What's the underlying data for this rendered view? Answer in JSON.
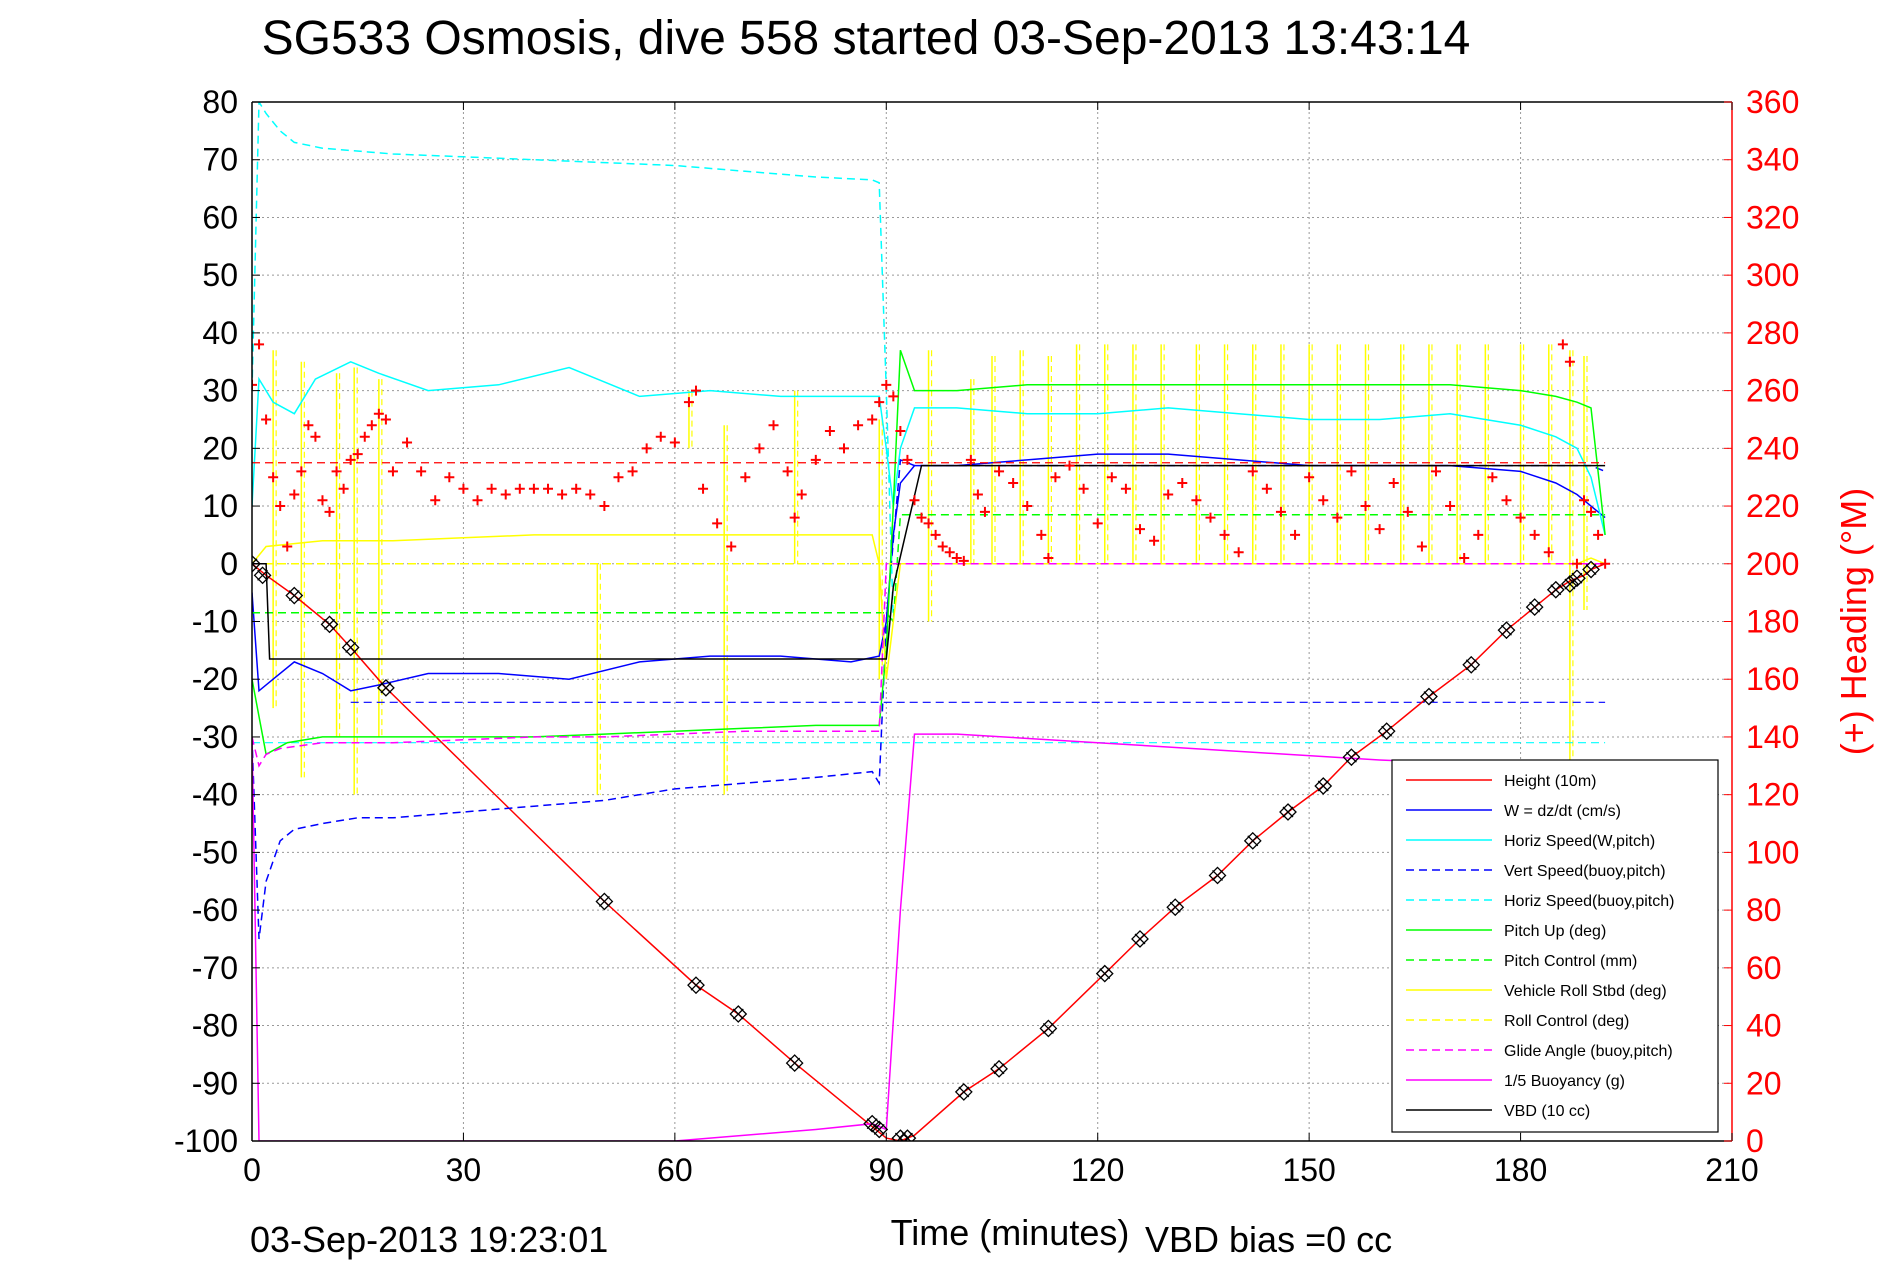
{
  "chart_data": {
    "type": "line",
    "title": "SG533 Osmosis, dive 558 started 03-Sep-2013 13:43:14",
    "xlabel": "Time (minutes)",
    "ylabel": "",
    "y2label": "(+) Heading (°M)",
    "xlim": [
      0,
      210
    ],
    "ylim": [
      -100,
      80
    ],
    "y2lim": [
      0,
      360
    ],
    "xticks": [
      0,
      30,
      60,
      90,
      120,
      150,
      180,
      210
    ],
    "yticks": [
      80,
      70,
      60,
      50,
      40,
      30,
      20,
      10,
      0,
      -10,
      -20,
      -30,
      -40,
      -50,
      -60,
      -70,
      -80,
      -90,
      -100
    ],
    "y2ticks": [
      360,
      340,
      320,
      300,
      280,
      260,
      240,
      220,
      200,
      180,
      160,
      140,
      120,
      100,
      80,
      60,
      40,
      20,
      0
    ],
    "grid": true,
    "legend_position": "bottom-right",
    "footer_left": "03-Sep-2013 19:23:01",
    "footer_right": "VBD bias =0 cc",
    "colors": {
      "axis": "#000000",
      "right_axis": "#ff0000",
      "grid": "#999999"
    },
    "series": [
      {
        "name": "Height (10m)",
        "color": "#ff0000",
        "style": "solid",
        "x": [
          0,
          2,
          6,
          11,
          14,
          19,
          50,
          63,
          69,
          77,
          88,
          90,
          92,
          94,
          101,
          106,
          113,
          121,
          126,
          131,
          137,
          142,
          147,
          152,
          156,
          161,
          167,
          173,
          178,
          182,
          185,
          187,
          189,
          190,
          192
        ],
        "values": [
          0,
          -2,
          -5.5,
          -10.5,
          -14.5,
          -21.5,
          -58.5,
          -73,
          -78,
          -86.5,
          -97.5,
          -99.5,
          -100,
          -99,
          -91.5,
          -87.5,
          -80.5,
          -71,
          -65,
          -59.5,
          -54,
          -48,
          -43,
          -38.5,
          -33.5,
          -29,
          -23,
          -17.5,
          -11.5,
          -7.5,
          -4.5,
          -3,
          -2,
          -1,
          0
        ]
      },
      {
        "name": "W = dz/dt (cm/s)",
        "color": "#0000ff",
        "style": "solid",
        "x": [
          0,
          1,
          3,
          6,
          10,
          14,
          18,
          25,
          35,
          45,
          55,
          65,
          75,
          85,
          89,
          90,
          91,
          92,
          94,
          100,
          110,
          120,
          130,
          140,
          150,
          160,
          170,
          180,
          185,
          188,
          190,
          192
        ],
        "values": [
          -5,
          -22,
          -20,
          -17,
          -19,
          -22,
          -21,
          -19,
          -19,
          -20,
          -17,
          -16,
          -16,
          -17,
          -16,
          -10,
          5,
          14,
          17,
          17,
          18,
          19,
          19,
          18,
          17,
          17,
          17,
          16,
          14,
          12,
          10,
          8
        ]
      },
      {
        "name": "Horiz Speed(W,pitch)",
        "color": "#00ffff",
        "style": "solid",
        "x": [
          0,
          1,
          3,
          6,
          9,
          14,
          18,
          25,
          35,
          45,
          55,
          65,
          75,
          85,
          89,
          90,
          91,
          92,
          94,
          100,
          110,
          120,
          130,
          140,
          150,
          160,
          170,
          180,
          185,
          188,
          190,
          192
        ],
        "values": [
          10,
          32,
          28,
          26,
          32,
          35,
          33,
          30,
          31,
          34,
          29,
          30,
          29,
          29,
          29,
          20,
          10,
          20,
          27,
          27,
          26,
          26,
          27,
          26,
          25,
          25,
          26,
          24,
          22,
          20,
          15,
          5
        ]
      },
      {
        "name": "Vert Speed(buoy,pitch)",
        "color": "#0000ff",
        "style": "dashed",
        "x": [
          0,
          1,
          2,
          4,
          6,
          10,
          15,
          20,
          30,
          40,
          50,
          60,
          70,
          80,
          88,
          89,
          90,
          92,
          94,
          100,
          120,
          140,
          160,
          180,
          190,
          192
        ],
        "values": [
          -30,
          -65,
          -55,
          -48,
          -46,
          -45,
          -44,
          -44,
          -43,
          -42,
          -41,
          -39,
          -38,
          -37,
          -36,
          -38,
          -10,
          18,
          17,
          17,
          17,
          17,
          17,
          17,
          17,
          16
        ]
      },
      {
        "name": "Horiz Speed(buoy,pitch)",
        "color": "#00ffff",
        "style": "dashed",
        "x": [
          0,
          1,
          2,
          4,
          6,
          10,
          20,
          30,
          40,
          50,
          60,
          70,
          80,
          88,
          89,
          90,
          91
        ],
        "values": [
          30,
          80,
          78,
          75,
          73,
          72,
          71,
          70.5,
          70,
          69.5,
          69,
          68,
          67,
          66.5,
          66,
          30,
          -10
        ]
      },
      {
        "name": "Pitch Up (deg)",
        "color": "#00ff00",
        "style": "solid",
        "x": [
          0,
          2,
          5,
          10,
          15,
          20,
          30,
          40,
          50,
          60,
          70,
          80,
          88,
          89,
          90,
          91,
          92,
          94,
          100,
          110,
          120,
          130,
          140,
          150,
          160,
          170,
          180,
          185,
          188,
          190,
          192
        ],
        "values": [
          -20,
          -33,
          -31,
          -30,
          -30,
          -30,
          -30,
          -30,
          -29.5,
          -29,
          -28.5,
          -28,
          -28,
          -28,
          -15,
          10,
          37,
          30,
          30,
          31,
          31,
          31,
          31,
          31,
          31,
          31,
          30,
          29,
          28,
          27,
          5
        ]
      },
      {
        "name": "Pitch Control (mm)",
        "color": "#00ff00",
        "style": "dashed",
        "x": [
          0,
          1,
          90,
          91,
          92,
          192
        ],
        "values": [
          -8.5,
          -8.5,
          -8.5,
          -10,
          8.5,
          8.5
        ]
      },
      {
        "name": "Vehicle Roll Stbd (deg)",
        "color": "#ffff00",
        "style": "solid",
        "x": [
          0,
          2,
          10,
          20,
          30,
          40,
          50,
          60,
          70,
          80,
          88,
          89,
          90,
          91,
          92,
          94,
          100,
          120,
          140,
          160,
          180,
          185,
          188,
          190,
          192
        ],
        "values": [
          0,
          3,
          4,
          4,
          4.5,
          5,
          5,
          5,
          5,
          5,
          5,
          0,
          -20,
          -10,
          0,
          0,
          0,
          0,
          0,
          0,
          0,
          0,
          0,
          1,
          0
        ]
      },
      {
        "name": "Roll Control (deg)",
        "color": "#ffff00",
        "style": "dashed",
        "x": [
          0,
          192
        ],
        "values": [
          0,
          0
        ]
      },
      {
        "name": "Glide Angle (buoy,pitch)",
        "color": "#ff00ff",
        "style": "dashed",
        "x": [
          0,
          1,
          2,
          4,
          10,
          20,
          30,
          40,
          50,
          60,
          70,
          80,
          88,
          89,
          90,
          91,
          92,
          94,
          100,
          192
        ],
        "values": [
          -30,
          -35,
          -33,
          -32,
          -31,
          -31,
          -30.5,
          -30,
          -30,
          -29.5,
          -29,
          -29,
          -29,
          -29,
          0,
          0,
          0,
          0,
          0,
          0
        ]
      },
      {
        "name": "1/5 Buoyancy (g)",
        "color": "#ff00ff",
        "style": "solid",
        "x": [
          0,
          1,
          2,
          60,
          80,
          88,
          90,
          92,
          94,
          100,
          120,
          140,
          160,
          180,
          192
        ],
        "values": [
          -30,
          -100,
          -100,
          -100,
          -98,
          -97,
          -98,
          -60,
          -29.5,
          -29.5,
          -31,
          -32.5,
          -34,
          -35,
          -36
        ]
      },
      {
        "name": "VBD (10 cc)",
        "color": "#000000",
        "style": "solid",
        "x": [
          0,
          2,
          2.5,
          89,
          90,
          91,
          95,
          192
        ],
        "values": [
          0,
          0,
          -16.5,
          -16.5,
          -16.5,
          -4,
          17,
          17
        ]
      }
    ],
    "extra_series": [
      {
        "color": "#0000ff",
        "style": "dashed",
        "comment": "secondary blue dashed line at approx -24",
        "x": [
          14,
          192
        ],
        "values": [
          -24,
          -24
        ]
      },
      {
        "color": "#00ffff",
        "style": "dashed",
        "comment": "secondary cyan dashed near pitch/glide",
        "x": [
          0,
          192
        ],
        "values": [
          -31,
          -31
        ]
      }
    ],
    "heading": {
      "color": "#ff0000",
      "style": "plus-markers",
      "mean_heading_line": 235,
      "x": [
        0,
        1,
        2,
        3,
        4,
        5,
        6,
        7,
        8,
        9,
        10,
        11,
        12,
        13,
        14,
        15,
        16,
        17,
        18,
        19,
        20,
        22,
        24,
        26,
        28,
        30,
        32,
        34,
        36,
        38,
        40,
        42,
        44,
        46,
        48,
        50,
        52,
        54,
        56,
        58,
        60,
        62,
        63,
        64,
        66,
        68,
        70,
        72,
        74,
        76,
        77,
        78,
        80,
        82,
        84,
        86,
        88,
        89,
        90,
        91,
        92,
        93,
        94,
        95,
        96,
        97,
        98,
        99,
        100,
        101,
        102,
        103,
        104,
        106,
        108,
        110,
        112,
        113,
        114,
        116,
        118,
        120,
        122,
        124,
        126,
        128,
        130,
        132,
        134,
        136,
        138,
        140,
        142,
        144,
        146,
        148,
        150,
        152,
        154,
        156,
        158,
        160,
        162,
        164,
        166,
        168,
        170,
        172,
        174,
        176,
        178,
        180,
        182,
        184,
        186,
        187,
        188,
        189,
        190,
        191,
        192
      ],
      "values": [
        262,
        276,
        250,
        230,
        220,
        206,
        224,
        232,
        248,
        244,
        222,
        218,
        232,
        226,
        236,
        238,
        244,
        248,
        252,
        250,
        232,
        242,
        232,
        222,
        230,
        226,
        222,
        226,
        224,
        226,
        226,
        226,
        224,
        226,
        224,
        220,
        230,
        232,
        240,
        244,
        242,
        256,
        260,
        226,
        214,
        206,
        230,
        240,
        248,
        232,
        216,
        224,
        236,
        246,
        240,
        248,
        250,
        256,
        262,
        258,
        246,
        236,
        222,
        216,
        214,
        210,
        206,
        204,
        202,
        201,
        236,
        224,
        218,
        232,
        228,
        220,
        210,
        202,
        230,
        234,
        226,
        214,
        230,
        226,
        212,
        208,
        224,
        228,
        222,
        216,
        210,
        204,
        232,
        226,
        218,
        210,
        230,
        222,
        216,
        232,
        220,
        212,
        228,
        218,
        206,
        232,
        220,
        202,
        210,
        230,
        222,
        216,
        210,
        204,
        276,
        270,
        200,
        222,
        218,
        210,
        200
      ]
    },
    "markers": {
      "color": "#000000",
      "shape": "diamond-x",
      "x": [
        0,
        1.5,
        6,
        11,
        14,
        19,
        50,
        63,
        69,
        77,
        88,
        89,
        92,
        93,
        101,
        106,
        113,
        121,
        126,
        131,
        137,
        142,
        147,
        152,
        156,
        161,
        167,
        173,
        178,
        182,
        185,
        187,
        188,
        190
      ],
      "values": [
        0,
        -2,
        -5.5,
        -10.5,
        -14.5,
        -21.5,
        -58.5,
        -73,
        -78,
        -86.5,
        -97,
        -98,
        -99.5,
        -99.5,
        -91.5,
        -87.5,
        -80.5,
        -71,
        -65,
        -59.5,
        -54,
        -48,
        -43,
        -38.5,
        -33.5,
        -29,
        -23,
        -17.5,
        -11.5,
        -7.5,
        -4.5,
        -3.5,
        -2.5,
        -1
      ]
    },
    "roll_spikes": {
      "color": "#ffff00",
      "style": "vertical-spikes",
      "x": [
        3,
        7,
        12,
        14.5,
        18,
        49,
        62,
        67,
        77,
        89,
        96,
        102,
        105,
        109,
        113,
        117,
        121,
        125,
        129,
        134,
        138,
        142,
        146,
        150,
        154,
        158,
        163,
        167,
        171,
        175,
        180,
        184,
        187,
        189
      ],
      "top": [
        37,
        35,
        33,
        34,
        32,
        0,
        30,
        24,
        30,
        25,
        37,
        32,
        36,
        37,
        36,
        38,
        38,
        38,
        38,
        38,
        38,
        38,
        38,
        38,
        38,
        38,
        38,
        38,
        38,
        38,
        38,
        38,
        37,
        36
      ],
      "bottom": [
        -25,
        -37,
        -30,
        -40,
        -30,
        -40,
        20,
        -40,
        0,
        -20,
        -10,
        0,
        0,
        0,
        0,
        0,
        0,
        0,
        0,
        0,
        0,
        0,
        0,
        0,
        0,
        0,
        0,
        0,
        0,
        0,
        0,
        0,
        -38,
        -8
      ]
    }
  }
}
